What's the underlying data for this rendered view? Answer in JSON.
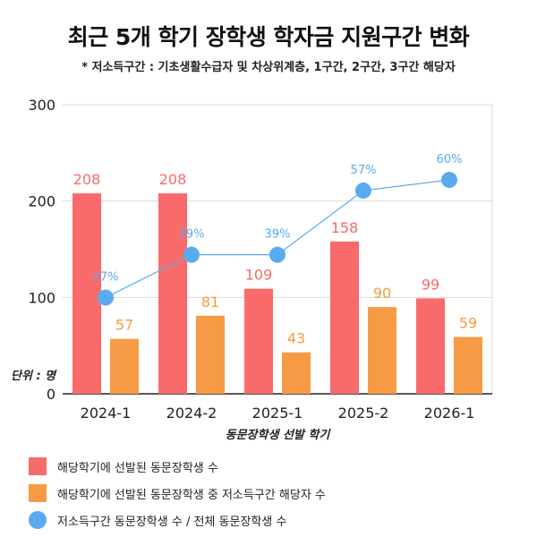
{
  "title": "최근 5개 학기 장학생 학자금 지원구간 변화",
  "subtitle": "* 저소득구간 : 기초생활수급자 및 차상위계층, 1구간, 2구간, 3구간 해당자",
  "chart_data": {
    "type": "bar",
    "categories": [
      "2024-1",
      "2024-2",
      "2025-1",
      "2025-2",
      "2026-1"
    ],
    "series": [
      {
        "name": "해당학기에 선발된 동문장학생 수",
        "type": "bar",
        "color": "#f96a6a",
        "values": [
          208,
          208,
          109,
          158,
          99
        ]
      },
      {
        "name": "해당학기에 선발된 동문장학생 중 저소득구간 해당자 수",
        "type": "bar",
        "color": "#f79a45",
        "values": [
          57,
          81,
          43,
          90,
          59
        ]
      },
      {
        "name": "저소득구간 동문장학생 수 / 전체 동문장학생 수",
        "type": "line",
        "color": "#5aaaf0",
        "values": [
          27,
          39,
          39,
          57,
          60
        ],
        "labels": [
          "27%",
          "39%",
          "39%",
          "57%",
          "60%"
        ]
      }
    ],
    "xlabel": "동문장학생 선발 학기",
    "ylabel": "단위 : 명",
    "ylim": [
      0,
      300
    ],
    "yticks": [
      0,
      100,
      200,
      300
    ],
    "grid": true,
    "legend_position": "bottom-left"
  }
}
